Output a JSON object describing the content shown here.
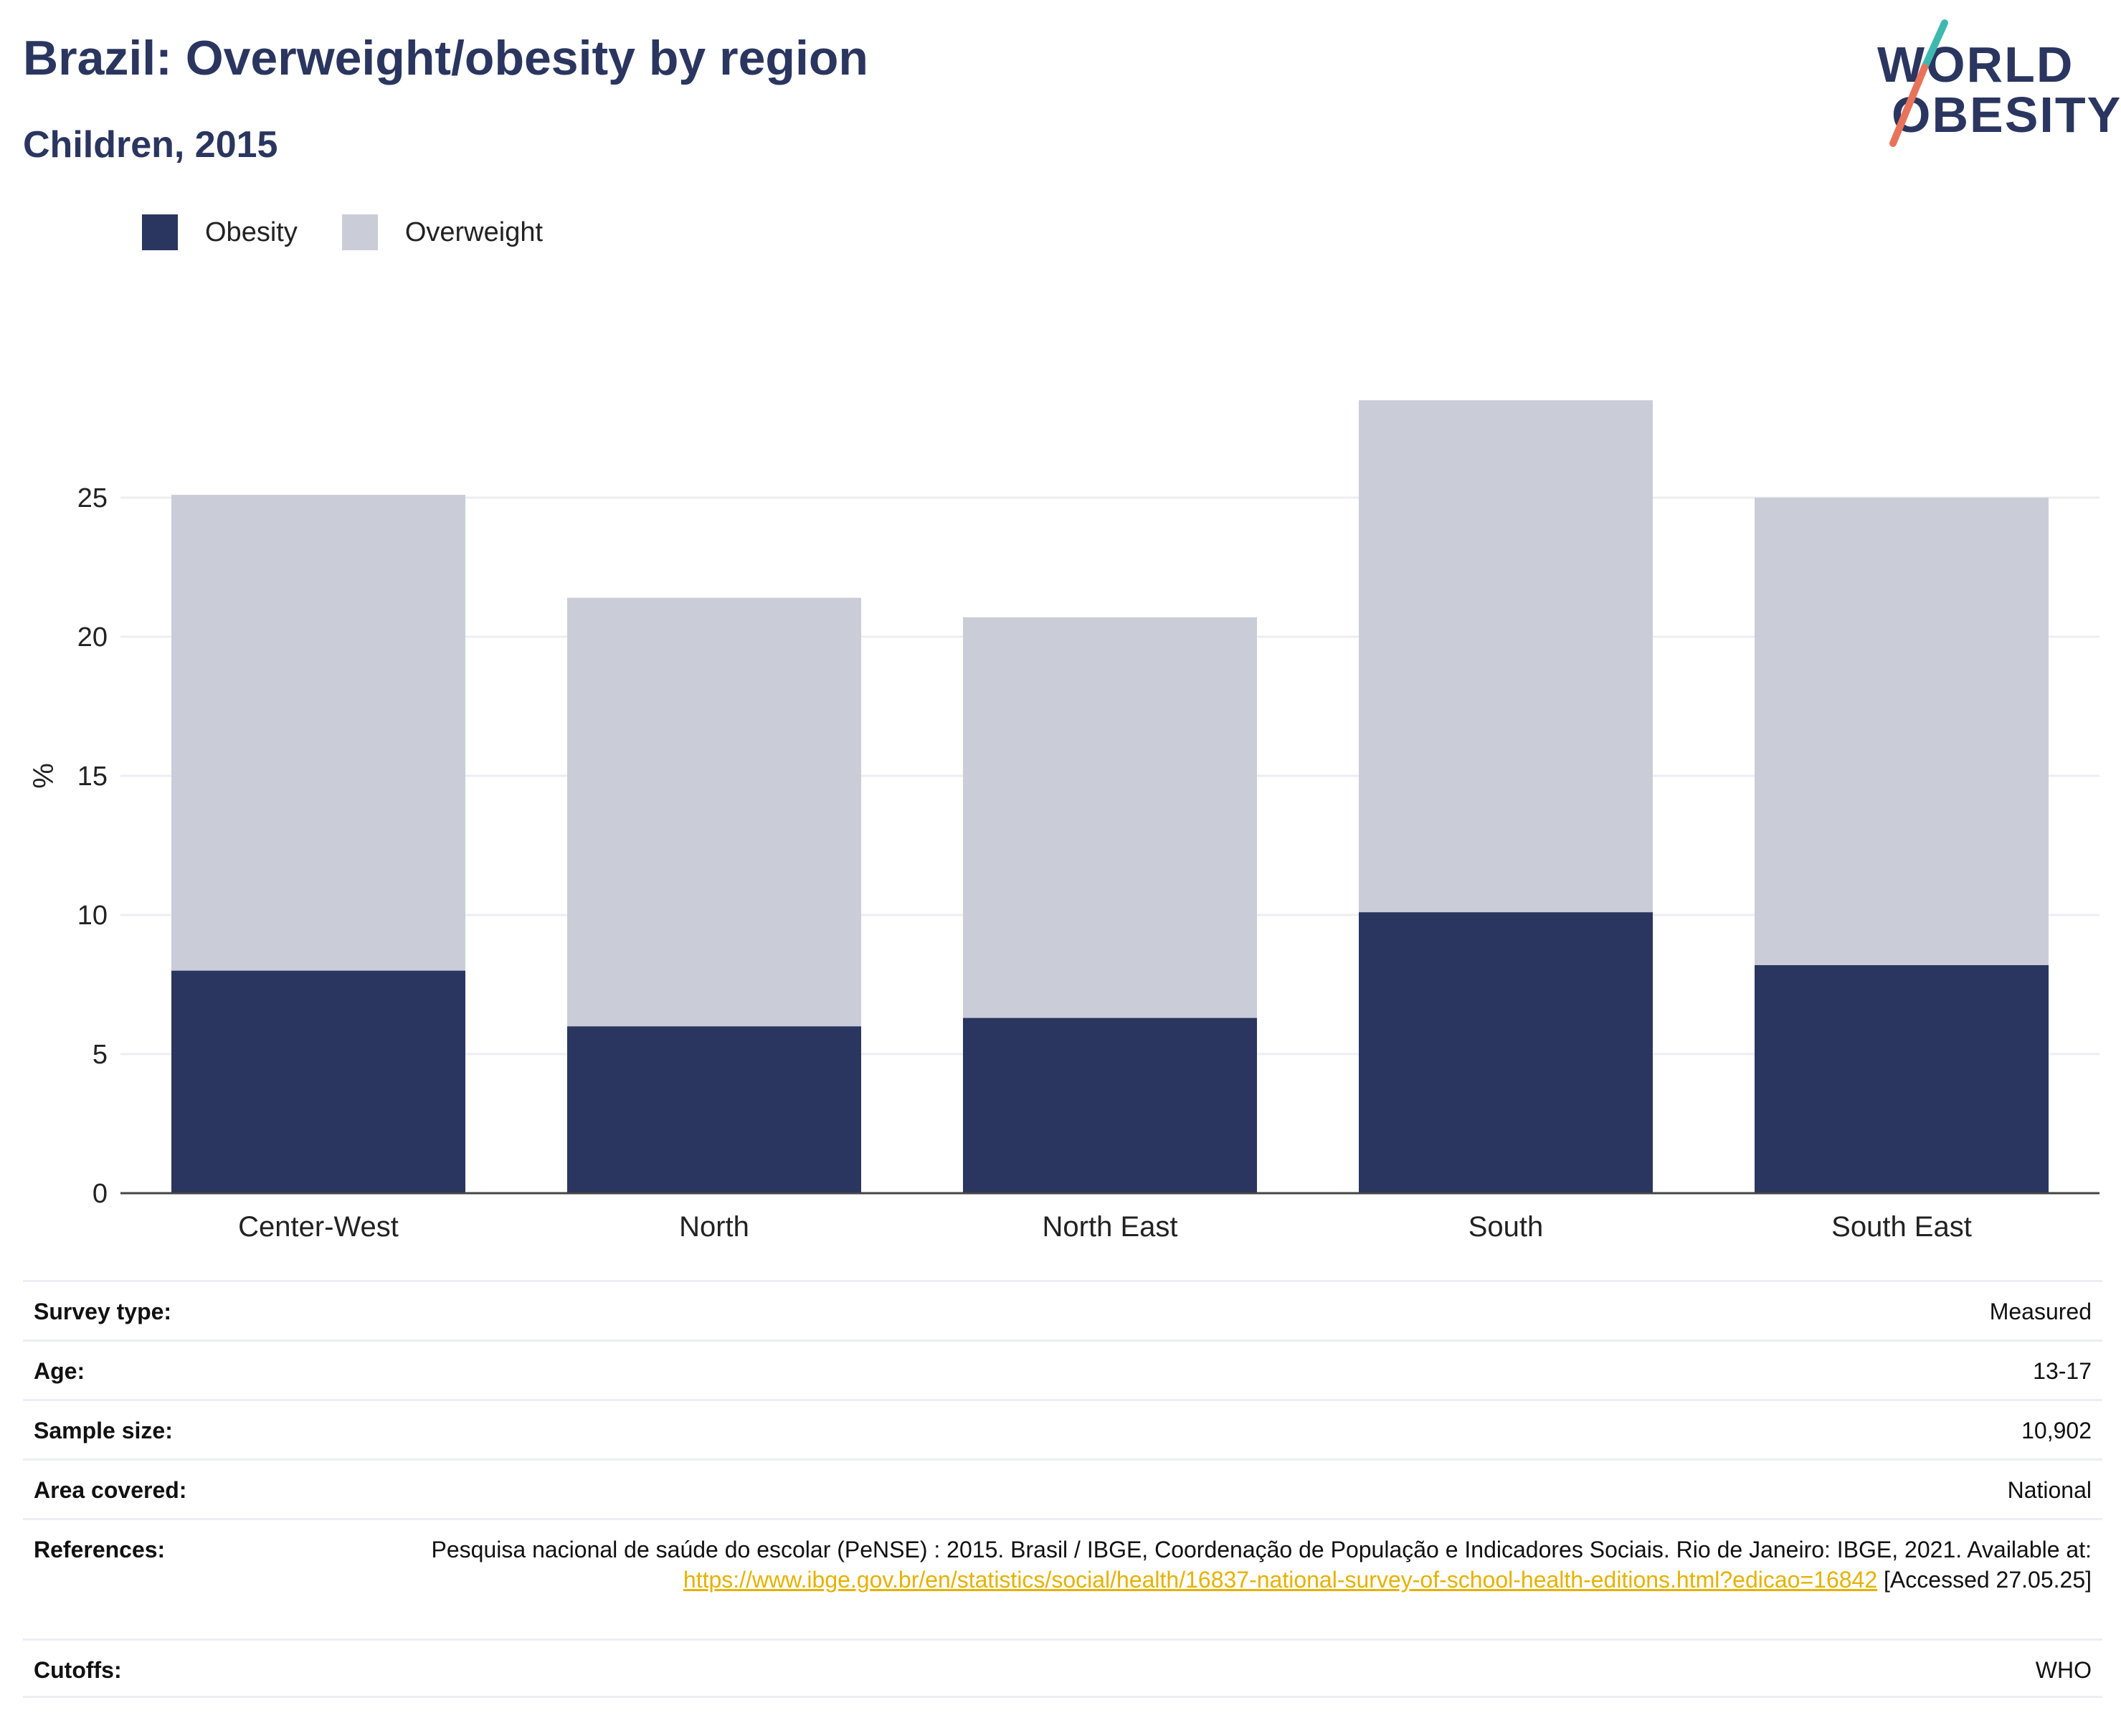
{
  "header": {
    "title": "Brazil: Overweight/obesity by region",
    "subtitle": "Children, 2015"
  },
  "logo": {
    "line1": "WORLD",
    "line2": "OBESITY",
    "accent_colors": [
      "#3fb9b0",
      "#e8735a"
    ]
  },
  "legend": [
    {
      "label": "Obesity",
      "color": "#2a365f"
    },
    {
      "label": "Overweight",
      "color": "#cacdd8"
    }
  ],
  "chart_data": {
    "type": "bar",
    "stacked": true,
    "categories": [
      "Center-West",
      "North",
      "North East",
      "South",
      "South East"
    ],
    "series": [
      {
        "name": "Obesity",
        "color": "#2a365f",
        "values": [
          8.0,
          6.0,
          6.3,
          10.1,
          8.2
        ]
      },
      {
        "name": "Overweight",
        "color": "#cacdd8",
        "values": [
          17.1,
          15.4,
          14.4,
          18.4,
          16.8
        ]
      }
    ],
    "totals": [
      25.1,
      21.4,
      20.7,
      28.5,
      25.0
    ],
    "ylabel": "%",
    "yticks": [
      0,
      5,
      10,
      15,
      20,
      25
    ],
    "ylim": [
      0,
      28.5
    ],
    "grid": true,
    "legend_position": "top-left"
  },
  "info": {
    "rows": [
      {
        "label": "Survey type:",
        "value": "Measured"
      },
      {
        "label": "Age:",
        "value": "13-17"
      },
      {
        "label": "Sample size:",
        "value": "10,902"
      },
      {
        "label": "Area covered:",
        "value": "National"
      }
    ],
    "references": {
      "label": "References:",
      "text_before": "Pesquisa nacional de saúde do escolar (PeNSE) : 2015. Brasil / IBGE, Coordenação de População e Indicadores Sociais. Rio de Janeiro: IBGE, 2021. Available at: ",
      "link": "https://www.ibge.gov.br/en/statistics/social/health/16837-national-survey-of-school-health-editions.html?edicao=16842",
      "text_after": " [Accessed 27.05.25]"
    },
    "cutoffs": {
      "label": "Cutoffs:",
      "value": "WHO"
    }
  }
}
